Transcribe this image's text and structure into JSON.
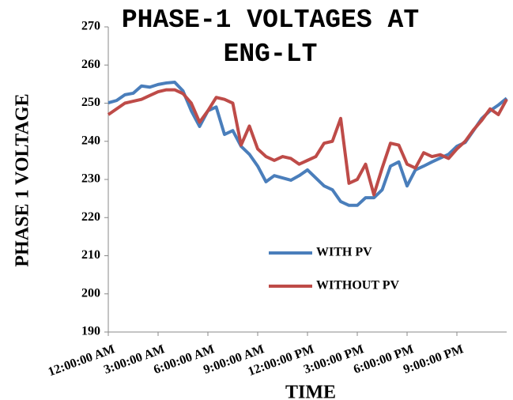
{
  "chart_data": {
    "type": "line",
    "title": "PHASE-1 VOLTAGES AT ENG-LT",
    "xlabel": "TIME",
    "ylabel": "PHASE 1 VOLTAGE",
    "categories": [
      "12:00:00 AM",
      null,
      null,
      null,
      null,
      null,
      "3:00:00 AM",
      null,
      null,
      null,
      null,
      null,
      "6:00:00 AM",
      null,
      null,
      null,
      null,
      null,
      "9:00:00 AM",
      null,
      null,
      null,
      null,
      null,
      "12:00:00 PM",
      null,
      null,
      null,
      null,
      null,
      "3:00:00 PM",
      null,
      null,
      null,
      null,
      null,
      "6:00:00 PM",
      null,
      null,
      null,
      null,
      null,
      "9:00:00 PM",
      null,
      null,
      null,
      null,
      null,
      null
    ],
    "series": [
      {
        "name": "WITH PV",
        "color": "#4a7ebb",
        "values": [
          250.1,
          250.7,
          252.2,
          252.6,
          254.5,
          254.2,
          254.9,
          255.3,
          255.5,
          253.2,
          248,
          243.9,
          248,
          249,
          241.8,
          242.8,
          238.7,
          236.6,
          233.5,
          229.4,
          231,
          230.4,
          229.8,
          231,
          232.5,
          230.4,
          228.3,
          227.3,
          224.2,
          223.2,
          223.2,
          225.2,
          225.2,
          227.3,
          233.5,
          234.6,
          228.3,
          232.5,
          233.5,
          234.6,
          235.6,
          236.6,
          238.7,
          239.7,
          242.8,
          246,
          248,
          249.5,
          251.3
        ]
      },
      {
        "name": "WITHOUT PV",
        "color": "#be4b48",
        "values": [
          247,
          248.5,
          250,
          250.5,
          251,
          252,
          253,
          253.5,
          253.5,
          252.5,
          250,
          245,
          248,
          251.5,
          251,
          250,
          239,
          244,
          238,
          236,
          235,
          236,
          235.5,
          234,
          235,
          236,
          239.5,
          240,
          246,
          229,
          230,
          234,
          226,
          233,
          239.5,
          239,
          234,
          233,
          237,
          236,
          236.5,
          235.5,
          238,
          240,
          243,
          245.5,
          248.5,
          247,
          251
        ]
      }
    ],
    "ylim": [
      190,
      270
    ],
    "yticks": [
      190,
      200,
      210,
      220,
      230,
      240,
      250,
      260,
      270
    ],
    "grid": false
  }
}
